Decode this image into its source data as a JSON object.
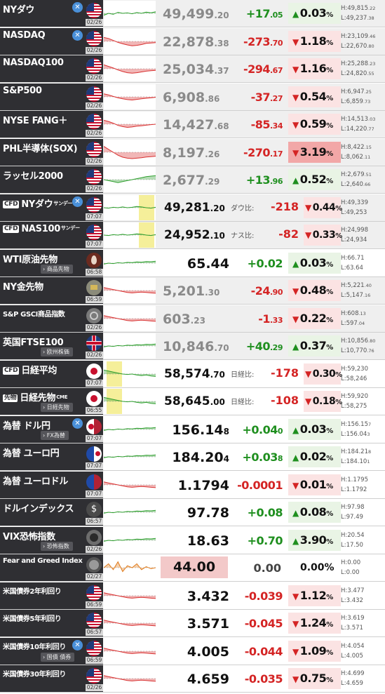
{
  "colors": {
    "up": "#1f8f1f",
    "down": "#d42424",
    "name_bg": "#2f2f33"
  },
  "rows": [
    {
      "name": "NYダウ",
      "icon": "us-flag-icon",
      "x": true,
      "date": "02/26",
      "price": {
        "int": "49,499",
        "dec": ".20"
      },
      "chg": {
        "int": "+17",
        "dec": ".05"
      },
      "dir": "up",
      "pct": "0.03",
      "high": {
        "int": "H:49,815",
        "dec": ".22"
      },
      "low": {
        "int": "L:49,237",
        "dec": ".38"
      },
      "spark": [
        0.6,
        0.5,
        0.55,
        0.45,
        0.5,
        0.48,
        0.52,
        0.46,
        0.5,
        0.44,
        0.47,
        0.42
      ]
    },
    {
      "name": "NASDAQ",
      "icon": "us-flag-icon",
      "x": true,
      "date": "02/26",
      "price": {
        "int": "22,878",
        "dec": ".38"
      },
      "chg": {
        "int": "-273",
        "dec": ".70"
      },
      "dir": "dn",
      "pct": "1.18",
      "high": {
        "int": "H:23,109",
        "dec": ".46"
      },
      "low": {
        "int": "L:22,670",
        "dec": ".80"
      },
      "spark": [
        0.3,
        0.35,
        0.45,
        0.55,
        0.62,
        0.68,
        0.72,
        0.7,
        0.66,
        0.6,
        0.58,
        0.56
      ]
    },
    {
      "name": "NASDAQ100",
      "icon": "us-flag-icon",
      "x": false,
      "date": "02/26",
      "price": {
        "int": "25,034",
        "dec": ".37"
      },
      "chg": {
        "int": "-294",
        "dec": ".67"
      },
      "dir": "dn",
      "pct": "1.16",
      "high": {
        "int": "H:25,288",
        "dec": ".23"
      },
      "low": {
        "int": "L:24,820",
        "dec": ".55"
      },
      "spark": [
        0.3,
        0.38,
        0.46,
        0.56,
        0.64,
        0.7,
        0.72,
        0.7,
        0.66,
        0.62,
        0.6,
        0.58
      ]
    },
    {
      "name": "S&P500",
      "icon": "us-flag-icon",
      "x": false,
      "date": "02/26",
      "price": {
        "int": "6,908",
        "dec": ".86"
      },
      "chg": {
        "int": "-37",
        "dec": ".27"
      },
      "dir": "dn",
      "pct": "0.54",
      "high": {
        "int": "H:6,947",
        "dec": ".25"
      },
      "low": {
        "int": "L:6,859",
        "dec": ".73"
      },
      "spark": [
        0.35,
        0.4,
        0.48,
        0.55,
        0.6,
        0.64,
        0.66,
        0.63,
        0.6,
        0.57,
        0.55,
        0.52
      ]
    },
    {
      "name": "NYSE FANG＋",
      "icon": "us-flag-icon",
      "x": false,
      "date": "02/26",
      "price": {
        "int": "14,427",
        "dec": ".68"
      },
      "chg": {
        "int": "-85",
        "dec": ".34"
      },
      "dir": "dn",
      "pct": "0.59",
      "high": {
        "int": "H:14,513",
        "dec": ".03"
      },
      "low": {
        "int": "L:14,220",
        "dec": ".77"
      },
      "spark": [
        0.3,
        0.36,
        0.45,
        0.56,
        0.62,
        0.66,
        0.64,
        0.6,
        0.58,
        0.55,
        0.52,
        0.5
      ]
    },
    {
      "name": "PHL半導体(SOX)",
      "icon": "us-flag-icon",
      "x": false,
      "date": "02/26",
      "price": {
        "int": "8,197",
        "dec": ".26"
      },
      "chg": {
        "int": "-270",
        "dec": ".17"
      },
      "dir": "dn",
      "pct": "3.19",
      "strong": true,
      "high": {
        "int": "H:8,422",
        "dec": ".15"
      },
      "low": {
        "int": "L:8,062",
        "dec": ".11"
      },
      "spark": [
        0.2,
        0.35,
        0.5,
        0.65,
        0.75,
        0.8,
        0.82,
        0.8,
        0.78,
        0.74,
        0.72,
        0.7
      ]
    },
    {
      "name": "ラッセル2000",
      "icon": "us-flag-icon",
      "x": false,
      "date": "02/26",
      "price": {
        "int": "2,677",
        "dec": ".29"
      },
      "chg": {
        "int": "+13",
        "dec": ".96"
      },
      "dir": "up",
      "pct": "0.52",
      "high": {
        "int": "H:2,679",
        "dec": ".51"
      },
      "low": {
        "int": "L:2,640",
        "dec": ".66"
      },
      "spark": [
        0.5,
        0.55,
        0.6,
        0.65,
        0.6,
        0.55,
        0.5,
        0.45,
        0.4,
        0.35,
        0.32,
        0.3
      ]
    }
  ],
  "cfd": [
    {
      "name": "NYダウ",
      "badge": "CFD",
      "sunday": "サンデー",
      "x": true,
      "date": "07:07",
      "price": {
        "int": "49,281",
        "dec": ".20"
      },
      "difflabel": "ダウ比:",
      "diff": "-218",
      "pct": "0.44",
      "high": "H:49,339",
      "low": "L:49,253"
    },
    {
      "name": "NAS100",
      "badge": "CFD",
      "sunday": "サンデー",
      "x": false,
      "date": "07:07",
      "price": {
        "int": "24,952",
        "dec": ".10"
      },
      "difflabel": "ナス比:",
      "diff": "-82",
      "pct": "0.33",
      "high": "H:24,998",
      "low": "L:24,934"
    }
  ],
  "commodities": [
    {
      "name": "WTI原油先物",
      "sub": "商品先物",
      "icon": "oil-drop-icon",
      "date": "06:58",
      "price": "65.44",
      "chg": "+0.02",
      "dir": "up",
      "pct": "0.03",
      "high": "H:66.71",
      "low": "L:63.64"
    },
    {
      "name": "NY金先物",
      "icon": "gold-bar-icon",
      "date": "06:59",
      "price": {
        "int": "5,201",
        "dec": ".30"
      },
      "chg": {
        "int": "-24",
        "dec": ".90"
      },
      "dir": "dn",
      "pct": "0.48",
      "high": {
        "int": "H:5,221",
        "dec": ".40"
      },
      "low": {
        "int": "L:5,147",
        "dec": ".16"
      }
    },
    {
      "name": "S&P GSCI商品指数",
      "icon": "commodity-index-icon",
      "date": "02/26",
      "price": {
        "int": "603",
        "dec": ".23"
      },
      "chg": {
        "int": "-1",
        "dec": ".33"
      },
      "dir": "dn",
      "pct": "0.22",
      "high": {
        "int": "H:608",
        "dec": ".13"
      },
      "low": {
        "int": "L:597",
        "dec": ".04"
      }
    },
    {
      "name": "英国FTSE100",
      "sub": "欧州株価",
      "icon": "uk-flag-icon",
      "date": "02/26",
      "price": {
        "int": "10,846",
        "dec": ".70"
      },
      "chg": {
        "int": "+40",
        "dec": ".29"
      },
      "dir": "up",
      "pct": "0.37",
      "high": {
        "int": "H:10,856",
        "dec": ".80"
      },
      "low": {
        "int": "L:10,770",
        "dec": ".76"
      }
    }
  ],
  "nikkei": [
    {
      "name": "日経平均",
      "badge": "CFD",
      "date": "07:07",
      "price": {
        "int": "58,574",
        "dec": ".70"
      },
      "difflabel": "日経比:",
      "diff": "-178",
      "pct": "0.30",
      "high": "H:59,230",
      "low": "L:58,246"
    },
    {
      "name": "日経先物",
      "badge": "先物",
      "cme": "CME",
      "sub": "日経先物",
      "date": "06:55",
      "price": {
        "int": "58,645",
        "dec": ".00"
      },
      "difflabel": "日経比:",
      "diff": "-108",
      "pct": "0.18",
      "high": "H:59,920",
      "low": "L:58,275"
    }
  ],
  "fx": [
    {
      "name": "為替 ドル円",
      "sub": "FX為替",
      "x": true,
      "icon": "jp-us-flag-icon",
      "date": "07:07",
      "price": {
        "int": "156.14",
        "dec": "8"
      },
      "chg": {
        "int": "+0.04",
        "dec": "0"
      },
      "dir": "up",
      "pct": "0.03",
      "high": {
        "int": "H:156.15",
        "dec": "7"
      },
      "low": {
        "int": "L:156.04",
        "dec": "3"
      }
    },
    {
      "name": "為替 ユーロ円",
      "icon": "eu-jp-flag-icon",
      "date": "07:07",
      "price": {
        "int": "184.20",
        "dec": "4"
      },
      "chg": {
        "int": "+0.03",
        "dec": "8"
      },
      "dir": "up",
      "pct": "0.02",
      "high": {
        "int": "H:184.21",
        "dec": "8"
      },
      "low": {
        "int": "L:184.10",
        "dec": "1"
      }
    },
    {
      "name": "為替 ユーロドル",
      "icon": "eu-us-flag-icon",
      "date": "07:07",
      "price": "1.1794",
      "chg": "-0.0001",
      "dir": "dn",
      "pct": "0.01",
      "high": "H:1.1795",
      "low": "L:1.1792"
    },
    {
      "name": "ドルインデックス",
      "icon": "dollar-index-icon",
      "date": "06:57",
      "price": "97.78",
      "chg": "+0.08",
      "dir": "up",
      "pct": "0.08",
      "high": "H:97.98",
      "low": "L:97.49"
    },
    {
      "name": "VIX恐怖指数",
      "sub": "恐怖指数",
      "icon": "vix-icon",
      "date": "02/26",
      "price": "18.63",
      "chg": "+0.70",
      "dir": "up",
      "pct": "3.90",
      "high": "H:20.54",
      "low": "L:17.50"
    }
  ],
  "fear_greed": {
    "name": "Fear and Greed Index",
    "date": "02/27",
    "value": "44.00",
    "chg": "0.00",
    "pct": "0.00%",
    "high": "H:0.00",
    "low": "L:0.00"
  },
  "bonds": [
    {
      "name": "米国債券2年利回り",
      "date": "06:59",
      "price": "3.432",
      "chg": "-0.039",
      "pct": "1.12",
      "high": "H:3.477",
      "low": "L:3.432"
    },
    {
      "name": "米国債券5年利回り",
      "date": "06:57",
      "price": "3.571",
      "chg": "-0.045",
      "pct": "1.24",
      "high": "H:3.619",
      "low": "L:3.571"
    },
    {
      "name": "米国債券10年利回り",
      "sub": "国債 債券",
      "x": true,
      "date": "06:59",
      "price": "4.005",
      "chg": "-0.044",
      "pct": "1.09",
      "high": "H:4.054",
      "low": "L:4.005"
    },
    {
      "name": "米国債券30年利回り",
      "date": "02/26",
      "price": "4.659",
      "chg": "-0.035",
      "pct": "0.75",
      "high": "H:4.699",
      "low": "L:4.659"
    }
  ]
}
